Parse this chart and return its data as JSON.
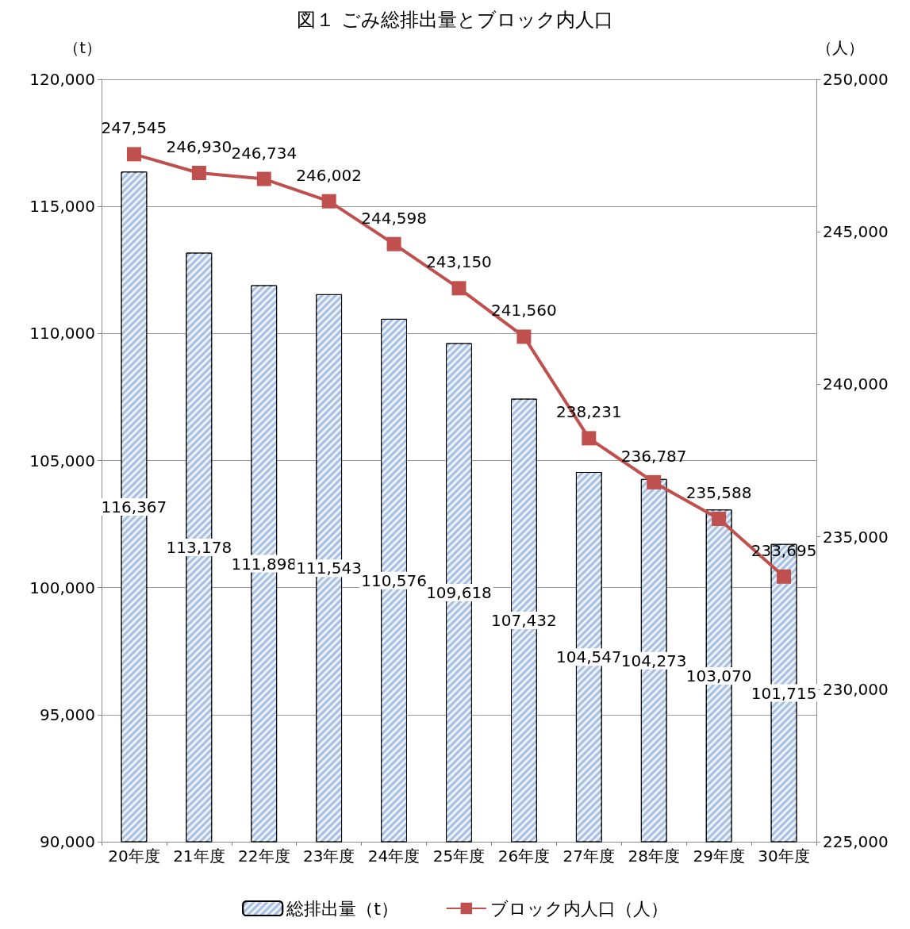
{
  "chart_data": {
    "type": "bar",
    "title": "図１ ごみ総排出量とブロック内人口",
    "ylabel": "（t）",
    "y2label": "（人）",
    "categories": [
      "20年度",
      "21年度",
      "22年度",
      "23年度",
      "24年度",
      "25年度",
      "26年度",
      "27年度",
      "28年度",
      "29年度",
      "30年度"
    ],
    "series": [
      {
        "name": "総排出量（t）",
        "color": "#a7bfe0",
        "values": [
          116367,
          113178,
          111898,
          111543,
          110576,
          109618,
          107432,
          104547,
          104273,
          103070,
          101715
        ],
        "value_labels": [
          "116,367",
          "113,178",
          "111,898",
          "111,543",
          "110,576",
          "109,618",
          "107,432",
          "104,547",
          "104,273",
          "103,070",
          "101,715"
        ]
      },
      {
        "name": "ブロック内人口（人）",
        "type": "line",
        "axis": "y2",
        "color": "#c0504d",
        "marker": "square",
        "values": [
          247545,
          246930,
          246734,
          246002,
          244598,
          243150,
          241560,
          238231,
          236787,
          235588,
          233695
        ],
        "value_labels": [
          "247,545",
          "246,930",
          "246,734",
          "246,002",
          "244,598",
          "243,150",
          "241,560",
          "238,231",
          "236,787",
          "235,588",
          "233,695"
        ]
      }
    ],
    "ylim": [
      90000,
      120000
    ],
    "yticks": [
      {
        "value": 90000,
        "label": "90,000"
      },
      {
        "value": 95000,
        "label": "95,000"
      },
      {
        "value": 100000,
        "label": "100,000"
      },
      {
        "value": 105000,
        "label": "105,000"
      },
      {
        "value": 110000,
        "label": "110,000"
      },
      {
        "value": 115000,
        "label": "115,000"
      },
      {
        "value": 120000,
        "label": "120,000"
      }
    ],
    "y2lim": [
      225000,
      250000
    ],
    "y2ticks": [
      {
        "value": 225000,
        "label": "225,000"
      },
      {
        "value": 230000,
        "label": "230,000"
      },
      {
        "value": 235000,
        "label": "235,000"
      },
      {
        "value": 240000,
        "label": "240,000"
      },
      {
        "value": 245000,
        "label": "245,000"
      },
      {
        "value": 250000,
        "label": "250,000"
      }
    ],
    "grid": "y",
    "legend": "bottom"
  }
}
